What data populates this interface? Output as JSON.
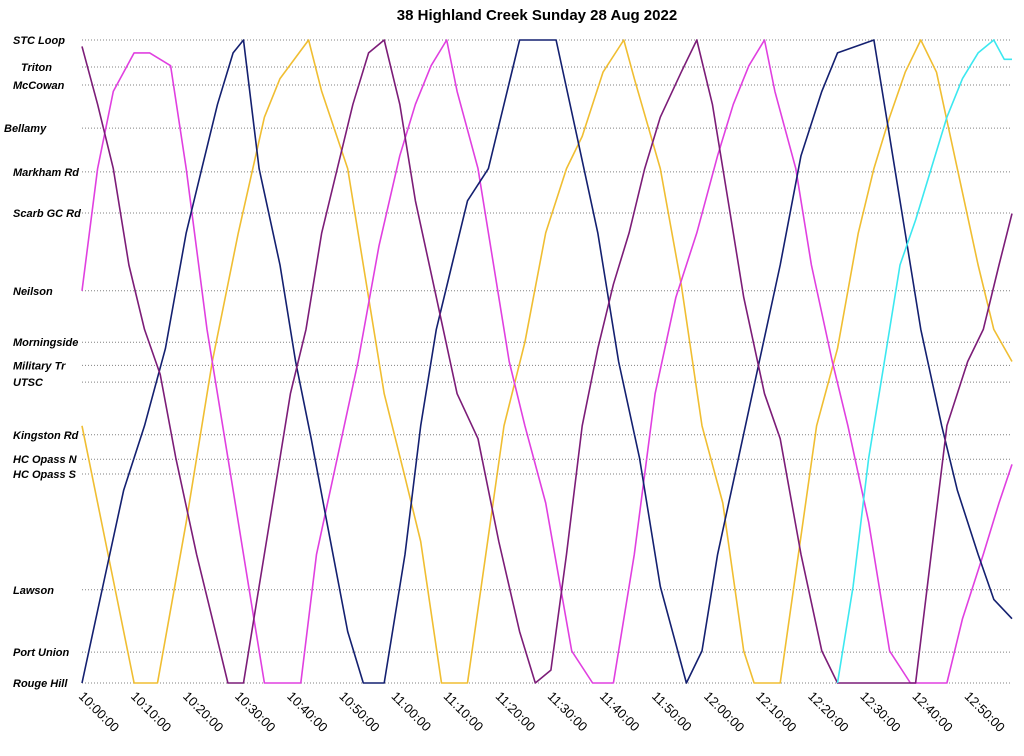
{
  "chart_data": {
    "type": "line",
    "title": "38 Highland Creek Sunday 28 Aug 2022",
    "xlabel": "",
    "ylabel": "",
    "x_axis": {
      "min": "10:00:00",
      "max": "12:58:30",
      "tick_labels": [
        "10:00:00",
        "10:10:00",
        "10:20:00",
        "10:30:00",
        "10:40:00",
        "10:50:00",
        "11:00:00",
        "11:10:00",
        "11:20:00",
        "11:30:00",
        "11:40:00",
        "11:50:00",
        "12:00:00",
        "12:10:00",
        "12:20:00",
        "12:30:00",
        "12:40:00",
        "12:50:00"
      ]
    },
    "y_axis": {
      "stops": [
        {
          "name": "STC Loop",
          "pos": 0.0
        },
        {
          "name": "Triton",
          "pos": 0.042
        },
        {
          "name": "McCowan",
          "pos": 0.07
        },
        {
          "name": "Bellamy",
          "pos": 0.137
        },
        {
          "name": "Markham Rd",
          "pos": 0.205
        },
        {
          "name": "Scarb GC Rd",
          "pos": 0.269
        },
        {
          "name": "Neilson",
          "pos": 0.39
        },
        {
          "name": "Morningside",
          "pos": 0.47
        },
        {
          "name": "Military Tr",
          "pos": 0.506
        },
        {
          "name": "UTSC",
          "pos": 0.532
        },
        {
          "name": "Kingston Rd",
          "pos": 0.614
        },
        {
          "name": "HC Opass N",
          "pos": 0.652
        },
        {
          "name": "HC Opass S",
          "pos": 0.675
        },
        {
          "name": "Lawson",
          "pos": 0.855
        },
        {
          "name": "Port Union",
          "pos": 0.952
        },
        {
          "name": "Rouge Hill",
          "pos": 1.0
        }
      ]
    },
    "grid": true,
    "legend": "none",
    "series": [
      {
        "color": "#9a9a9a",
        "points": []
      },
      {
        "color": "#f0be32",
        "points": [
          [
            "10:00:00",
            0.6
          ],
          [
            "10:06:30",
            0.86
          ],
          [
            "10:10:00",
            1.0
          ],
          [
            "10:14:30",
            1.0
          ],
          [
            "10:20:00",
            0.75
          ],
          [
            "10:25:00",
            0.5
          ],
          [
            "10:30:00",
            0.3
          ],
          [
            "10:35:00",
            0.12
          ],
          [
            "10:38:00",
            0.06
          ],
          [
            "10:43:30",
            0.0
          ],
          [
            "10:46:00",
            0.08
          ],
          [
            "10:51:00",
            0.2
          ],
          [
            "10:54:00",
            0.35
          ],
          [
            "10:58:00",
            0.55
          ],
          [
            "11:02:00",
            0.68
          ],
          [
            "11:05:00",
            0.78
          ],
          [
            "11:09:00",
            1.0
          ],
          [
            "11:14:00",
            1.0
          ],
          [
            "11:17:30",
            0.8
          ],
          [
            "11:21:00",
            0.6
          ],
          [
            "11:25:00",
            0.47
          ],
          [
            "11:29:00",
            0.3
          ],
          [
            "11:33:00",
            0.2
          ],
          [
            "11:36:00",
            0.15
          ],
          [
            "11:40:00",
            0.05
          ],
          [
            "11:44:00",
            0.0
          ],
          [
            "11:46:00",
            0.06
          ],
          [
            "11:51:00",
            0.2
          ],
          [
            "11:55:00",
            0.38
          ],
          [
            "11:59:00",
            0.6
          ],
          [
            "12:03:00",
            0.72
          ],
          [
            "12:07:00",
            0.95
          ],
          [
            "12:09:00",
            1.0
          ],
          [
            "12:14:00",
            1.0
          ],
          [
            "12:17:30",
            0.8
          ],
          [
            "12:21:00",
            0.6
          ],
          [
            "12:25:00",
            0.48
          ],
          [
            "12:29:00",
            0.3
          ],
          [
            "12:32:00",
            0.2
          ],
          [
            "12:35:00",
            0.12
          ],
          [
            "12:38:00",
            0.05
          ],
          [
            "12:41:00",
            0.0
          ],
          [
            "12:44:00",
            0.05
          ],
          [
            "12:48:00",
            0.2
          ],
          [
            "12:52:00",
            0.35
          ],
          [
            "12:55:00",
            0.45
          ],
          [
            "12:58:30",
            0.5
          ]
        ]
      },
      {
        "color": "#e040e0",
        "points": [
          [
            "10:00:00",
            0.39
          ],
          [
            "10:03:00",
            0.2
          ],
          [
            "10:06:00",
            0.08
          ],
          [
            "10:10:00",
            0.02
          ],
          [
            "10:13:00",
            0.02
          ],
          [
            "10:17:00",
            0.04
          ],
          [
            "10:20:00",
            0.2
          ],
          [
            "10:24:00",
            0.45
          ],
          [
            "10:28:00",
            0.65
          ],
          [
            "10:33:00",
            0.9
          ],
          [
            "10:35:00",
            1.0
          ],
          [
            "10:42:00",
            1.0
          ],
          [
            "10:45:00",
            0.8
          ],
          [
            "10:49:00",
            0.65
          ],
          [
            "10:53:00",
            0.5
          ],
          [
            "10:57:00",
            0.32
          ],
          [
            "11:01:00",
            0.18
          ],
          [
            "11:04:00",
            0.1
          ],
          [
            "11:07:00",
            0.04
          ],
          [
            "11:10:00",
            0.0
          ],
          [
            "11:12:00",
            0.08
          ],
          [
            "11:16:00",
            0.2
          ],
          [
            "11:19:00",
            0.35
          ],
          [
            "11:22:00",
            0.5
          ],
          [
            "11:25:00",
            0.6
          ],
          [
            "11:29:00",
            0.72
          ],
          [
            "11:34:00",
            0.95
          ],
          [
            "11:38:00",
            1.0
          ],
          [
            "11:42:00",
            1.0
          ],
          [
            "11:46:00",
            0.8
          ],
          [
            "11:50:00",
            0.55
          ],
          [
            "11:54:00",
            0.4
          ],
          [
            "11:58:00",
            0.3
          ],
          [
            "12:02:00",
            0.18
          ],
          [
            "12:05:00",
            0.1
          ],
          [
            "12:08:00",
            0.04
          ],
          [
            "12:11:00",
            0.0
          ],
          [
            "12:13:00",
            0.08
          ],
          [
            "12:17:00",
            0.2
          ],
          [
            "12:20:00",
            0.35
          ],
          [
            "12:24:00",
            0.5
          ],
          [
            "12:27:00",
            0.6
          ],
          [
            "12:31:00",
            0.75
          ],
          [
            "12:35:00",
            0.95
          ],
          [
            "12:39:00",
            1.0
          ],
          [
            "12:46:00",
            1.0
          ],
          [
            "12:49:00",
            0.9
          ],
          [
            "12:53:00",
            0.8
          ],
          [
            "12:56:00",
            0.72
          ],
          [
            "12:58:30",
            0.66
          ]
        ]
      },
      {
        "color": "#142070",
        "points": [
          [
            "10:00:00",
            1.0
          ],
          [
            "10:04:00",
            0.85
          ],
          [
            "10:08:00",
            0.7
          ],
          [
            "10:12:00",
            0.6
          ],
          [
            "10:16:00",
            0.48
          ],
          [
            "10:20:00",
            0.3
          ],
          [
            "10:23:00",
            0.2
          ],
          [
            "10:26:00",
            0.1
          ],
          [
            "10:29:00",
            0.02
          ],
          [
            "10:31:00",
            0.0
          ],
          [
            "10:34:00",
            0.2
          ],
          [
            "10:38:00",
            0.35
          ],
          [
            "10:41:00",
            0.5
          ],
          [
            "10:44:00",
            0.62
          ],
          [
            "10:47:00",
            0.75
          ],
          [
            "10:51:00",
            0.92
          ],
          [
            "10:54:00",
            1.0
          ],
          [
            "10:58:00",
            1.0
          ],
          [
            "11:02:00",
            0.8
          ],
          [
            "11:05:00",
            0.6
          ],
          [
            "11:08:00",
            0.45
          ],
          [
            "11:11:00",
            0.35
          ],
          [
            "11:14:00",
            0.25
          ],
          [
            "11:18:00",
            0.2
          ],
          [
            "11:21:00",
            0.1
          ],
          [
            "11:24:00",
            0.0
          ],
          [
            "11:31:00",
            0.0
          ],
          [
            "11:35:00",
            0.15
          ],
          [
            "11:39:00",
            0.3
          ],
          [
            "11:43:00",
            0.5
          ],
          [
            "11:47:00",
            0.65
          ],
          [
            "11:51:00",
            0.85
          ],
          [
            "11:56:00",
            1.0
          ],
          [
            "11:59:00",
            0.95
          ],
          [
            "12:02:00",
            0.8
          ],
          [
            "12:06:00",
            0.65
          ],
          [
            "12:10:00",
            0.5
          ],
          [
            "12:14:00",
            0.35
          ],
          [
            "12:18:00",
            0.18
          ],
          [
            "12:22:00",
            0.08
          ],
          [
            "12:25:00",
            0.02
          ],
          [
            "12:32:00",
            0.0
          ],
          [
            "12:35:00",
            0.15
          ],
          [
            "12:38:00",
            0.3
          ],
          [
            "12:41:00",
            0.45
          ],
          [
            "12:45:00",
            0.6
          ],
          [
            "12:48:00",
            0.7
          ],
          [
            "12:52:00",
            0.8
          ],
          [
            "12:55:00",
            0.87
          ],
          [
            "12:58:30",
            0.9
          ]
        ]
      },
      {
        "color": "#7c1d78",
        "points": [
          [
            "10:00:00",
            0.01
          ],
          [
            "10:03:00",
            0.1
          ],
          [
            "10:06:00",
            0.2
          ],
          [
            "10:09:00",
            0.35
          ],
          [
            "10:12:00",
            0.45
          ],
          [
            "10:15:00",
            0.52
          ],
          [
            "10:18:00",
            0.65
          ],
          [
            "10:22:00",
            0.8
          ],
          [
            "10:25:00",
            0.9
          ],
          [
            "10:28:00",
            1.0
          ],
          [
            "10:31:00",
            1.0
          ],
          [
            "10:34:00",
            0.85
          ],
          [
            "10:37:00",
            0.7
          ],
          [
            "10:40:00",
            0.55
          ],
          [
            "10:43:00",
            0.45
          ],
          [
            "10:46:00",
            0.3
          ],
          [
            "10:49:00",
            0.2
          ],
          [
            "10:52:00",
            0.1
          ],
          [
            "10:55:00",
            0.02
          ],
          [
            "10:58:00",
            0.0
          ],
          [
            "11:01:00",
            0.1
          ],
          [
            "11:04:00",
            0.25
          ],
          [
            "11:08:00",
            0.4
          ],
          [
            "11:12:00",
            0.55
          ],
          [
            "11:16:00",
            0.62
          ],
          [
            "11:20:00",
            0.78
          ],
          [
            "11:24:00",
            0.92
          ],
          [
            "11:27:00",
            1.0
          ],
          [
            "11:30:00",
            0.98
          ],
          [
            "11:33:00",
            0.8
          ],
          [
            "11:36:00",
            0.6
          ],
          [
            "11:39:00",
            0.48
          ],
          [
            "11:42:00",
            0.38
          ],
          [
            "11:45:00",
            0.3
          ],
          [
            "11:48:00",
            0.2
          ],
          [
            "11:51:00",
            0.12
          ],
          [
            "11:55:00",
            0.05
          ],
          [
            "11:58:00",
            0.0
          ],
          [
            "12:01:00",
            0.1
          ],
          [
            "12:04:00",
            0.25
          ],
          [
            "12:07:00",
            0.4
          ],
          [
            "12:11:00",
            0.55
          ],
          [
            "12:14:00",
            0.62
          ],
          [
            "12:18:00",
            0.8
          ],
          [
            "12:22:00",
            0.95
          ],
          [
            "12:25:00",
            1.0
          ],
          [
            "12:40:00",
            1.0
          ],
          [
            "12:43:00",
            0.8
          ],
          [
            "12:46:00",
            0.6
          ],
          [
            "12:50:00",
            0.5
          ],
          [
            "12:53:00",
            0.45
          ],
          [
            "12:56:00",
            0.35
          ],
          [
            "12:58:30",
            0.27
          ]
        ]
      },
      {
        "color": "#3ce8f0",
        "points": [
          [
            "12:25:00",
            1.0
          ],
          [
            "12:28:00",
            0.85
          ],
          [
            "12:31:00",
            0.65
          ],
          [
            "12:34:00",
            0.5
          ],
          [
            "12:37:00",
            0.35
          ],
          [
            "12:40:00",
            0.28
          ],
          [
            "12:43:00",
            0.2
          ],
          [
            "12:46:00",
            0.12
          ],
          [
            "12:49:00",
            0.06
          ],
          [
            "12:52:00",
            0.02
          ],
          [
            "12:55:00",
            0.0
          ],
          [
            "12:57:00",
            0.03
          ],
          [
            "12:58:30",
            0.03
          ]
        ]
      }
    ]
  }
}
